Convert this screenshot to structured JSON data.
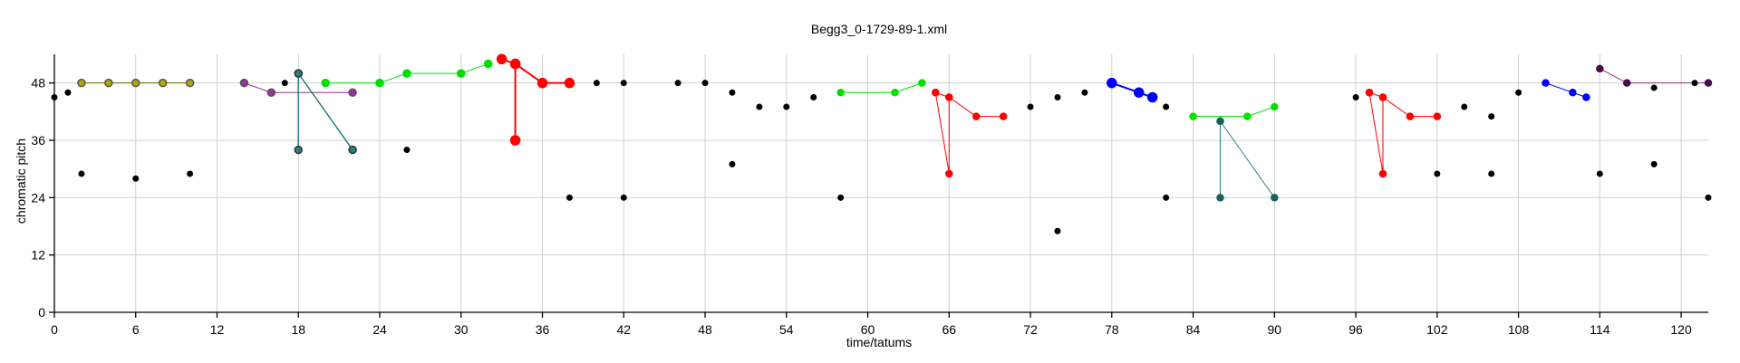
{
  "chart_data": {
    "type": "scatter",
    "title": "Begg3_0-1729-89-1.xml",
    "xlabel": "time/tatums",
    "ylabel": "chromatic pitch",
    "xlim": [
      0,
      122
    ],
    "ylim": [
      0,
      54
    ],
    "xticks": [
      0,
      6,
      12,
      18,
      24,
      30,
      36,
      42,
      48,
      54,
      60,
      66,
      72,
      78,
      84,
      90,
      96,
      102,
      108,
      114,
      120
    ],
    "yticks": [
      0,
      12,
      24,
      36,
      48
    ],
    "grid": true,
    "points": [
      {
        "x": 0,
        "y": 45
      },
      {
        "x": 1,
        "y": 46
      },
      {
        "x": 2,
        "y": 29
      },
      {
        "x": 6,
        "y": 28
      },
      {
        "x": 10,
        "y": 29
      },
      {
        "x": 17,
        "y": 48
      },
      {
        "x": 26,
        "y": 34
      },
      {
        "x": 38,
        "y": 24
      },
      {
        "x": 40,
        "y": 48
      },
      {
        "x": 42,
        "y": 48
      },
      {
        "x": 42,
        "y": 24
      },
      {
        "x": 46,
        "y": 48
      },
      {
        "x": 48,
        "y": 48
      },
      {
        "x": 50,
        "y": 46
      },
      {
        "x": 50,
        "y": 31
      },
      {
        "x": 52,
        "y": 43
      },
      {
        "x": 54,
        "y": 43
      },
      {
        "x": 56,
        "y": 45
      },
      {
        "x": 58,
        "y": 24
      },
      {
        "x": 72,
        "y": 43
      },
      {
        "x": 74,
        "y": 45
      },
      {
        "x": 74,
        "y": 17
      },
      {
        "x": 76,
        "y": 46
      },
      {
        "x": 82,
        "y": 43
      },
      {
        "x": 82,
        "y": 24
      },
      {
        "x": 96,
        "y": 45
      },
      {
        "x": 102,
        "y": 29
      },
      {
        "x": 104,
        "y": 43
      },
      {
        "x": 106,
        "y": 41
      },
      {
        "x": 106,
        "y": 29
      },
      {
        "x": 108,
        "y": 46
      },
      {
        "x": 114,
        "y": 29
      },
      {
        "x": 118,
        "y": 47
      },
      {
        "x": 118,
        "y": 31
      },
      {
        "x": 121,
        "y": 48
      },
      {
        "x": 122,
        "y": 24
      }
    ],
    "segments": [
      {
        "color": "#6b6b00",
        "fill": "#aaaa00",
        "edge": "#555555",
        "r": 4,
        "w": 1,
        "points": [
          {
            "x": 2,
            "y": 48
          },
          {
            "x": 4,
            "y": 48
          },
          {
            "x": 6,
            "y": 48
          },
          {
            "x": 8,
            "y": 48
          },
          {
            "x": 10,
            "y": 48
          }
        ]
      },
      {
        "color": "#8a2f8a",
        "fill": "#9b30a0",
        "edge": "#555555",
        "r": 4,
        "w": 1,
        "points": [
          {
            "x": 14,
            "y": 48
          },
          {
            "x": 16,
            "y": 46
          },
          {
            "x": 22,
            "y": 46
          }
        ]
      },
      {
        "color": "#2a8080",
        "fill": "#2a8080",
        "edge": "#333333",
        "r": 4,
        "w": 1.5,
        "points": [
          {
            "x": 18,
            "y": 50
          },
          {
            "x": 18,
            "y": 34
          }
        ]
      },
      {
        "color": "#2a8080",
        "fill": "#2a8080",
        "edge": "#333333",
        "r": 4,
        "w": 1.5,
        "points": [
          {
            "x": 18,
            "y": 50
          },
          {
            "x": 22,
            "y": 34
          }
        ]
      },
      {
        "color": "#00e000",
        "fill": "#00e000",
        "edge": "#00e000",
        "r": 4,
        "w": 1,
        "points": [
          {
            "x": 20,
            "y": 48
          },
          {
            "x": 24,
            "y": 48
          },
          {
            "x": 26,
            "y": 50
          },
          {
            "x": 30,
            "y": 50
          },
          {
            "x": 32,
            "y": 52
          }
        ]
      },
      {
        "color": "#ff0000",
        "fill": "#ff0000",
        "edge": "#ff0000",
        "r": 5,
        "w": 2,
        "points": [
          {
            "x": 33,
            "y": 53
          },
          {
            "x": 34,
            "y": 52
          },
          {
            "x": 36,
            "y": 48
          },
          {
            "x": 38,
            "y": 48
          }
        ]
      },
      {
        "color": "#ff0000",
        "fill": "#ff0000",
        "edge": "#ff0000",
        "r": 5,
        "w": 2,
        "points": [
          {
            "x": 34,
            "y": 52
          },
          {
            "x": 34,
            "y": 36
          }
        ]
      },
      {
        "color": "#00e000",
        "fill": "#00e000",
        "edge": "#00e000",
        "r": 3.5,
        "w": 1,
        "points": [
          {
            "x": 58,
            "y": 46
          },
          {
            "x": 62,
            "y": 46
          },
          {
            "x": 64,
            "y": 48
          }
        ]
      },
      {
        "color": "#ff0000",
        "fill": "#ff0000",
        "edge": "#ff0000",
        "r": 3.5,
        "w": 1,
        "points": [
          {
            "x": 65,
            "y": 46
          },
          {
            "x": 66,
            "y": 45
          },
          {
            "x": 68,
            "y": 41
          },
          {
            "x": 70,
            "y": 41
          }
        ]
      },
      {
        "color": "#ff0000",
        "fill": "#ff0000",
        "edge": "#ff0000",
        "r": 3.5,
        "w": 1,
        "points": [
          {
            "x": 65,
            "y": 46
          },
          {
            "x": 66,
            "y": 29
          },
          {
            "x": 66,
            "y": 45
          }
        ]
      },
      {
        "color": "#0000ff",
        "fill": "#0000ff",
        "edge": "#0000ff",
        "r": 5,
        "w": 2,
        "points": [
          {
            "x": 78,
            "y": 48
          },
          {
            "x": 80,
            "y": 46
          },
          {
            "x": 81,
            "y": 45
          }
        ]
      },
      {
        "color": "#00e000",
        "fill": "#00e000",
        "edge": "#00e000",
        "r": 3.5,
        "w": 1,
        "points": [
          {
            "x": 84,
            "y": 41
          },
          {
            "x": 88,
            "y": 41
          },
          {
            "x": 90,
            "y": 43
          }
        ]
      },
      {
        "color": "#2a8080",
        "fill": "#1a6060",
        "edge": "#1a6060",
        "r": 3.5,
        "w": 1,
        "points": [
          {
            "x": 86,
            "y": 40
          },
          {
            "x": 86,
            "y": 24
          }
        ]
      },
      {
        "color": "#2a8080",
        "fill": "#1a6060",
        "edge": "#1a6060",
        "r": 3.5,
        "w": 1,
        "points": [
          {
            "x": 86,
            "y": 40
          },
          {
            "x": 90,
            "y": 24
          }
        ]
      },
      {
        "color": "#ff0000",
        "fill": "#ff0000",
        "edge": "#ff0000",
        "r": 3.5,
        "w": 1,
        "points": [
          {
            "x": 97,
            "y": 46
          },
          {
            "x": 98,
            "y": 45
          },
          {
            "x": 100,
            "y": 41
          },
          {
            "x": 102,
            "y": 41
          }
        ]
      },
      {
        "color": "#ff0000",
        "fill": "#ff0000",
        "edge": "#ff0000",
        "r": 3.5,
        "w": 1,
        "points": [
          {
            "x": 97,
            "y": 46
          },
          {
            "x": 98,
            "y": 29
          },
          {
            "x": 98,
            "y": 45
          }
        ]
      },
      {
        "color": "#0000ff",
        "fill": "#0000ff",
        "edge": "#0000ff",
        "r": 3.5,
        "w": 1,
        "points": [
          {
            "x": 110,
            "y": 48
          },
          {
            "x": 112,
            "y": 46
          },
          {
            "x": 113,
            "y": 45
          }
        ]
      },
      {
        "color": "#8a2f8a",
        "fill": "#4a0a4a",
        "edge": "#4a0a4a",
        "r": 3.5,
        "w": 1,
        "points": [
          {
            "x": 114,
            "y": 51
          },
          {
            "x": 116,
            "y": 48
          },
          {
            "x": 122,
            "y": 48
          }
        ]
      }
    ]
  }
}
